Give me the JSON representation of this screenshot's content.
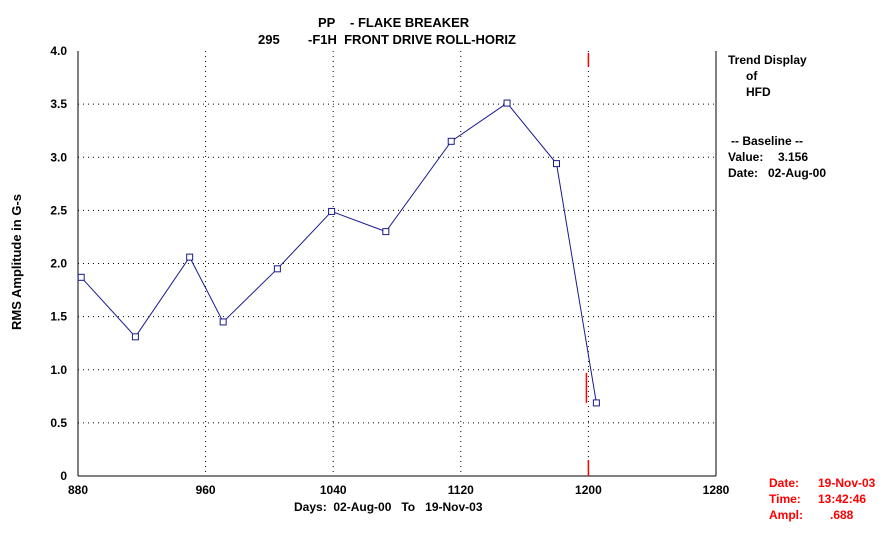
{
  "chart_data": {
    "type": "line",
    "title_lines": [
      {
        "code": "PP",
        "desc": "- FLAKE BREAKER"
      },
      {
        "code": "295",
        "desc": "-F1H  FRONT DRIVE ROLL-HORIZ"
      }
    ],
    "xlabel": "Days:  02-Aug-00   To   19-Nov-03",
    "ylabel": "RMS Amplitude in G-s",
    "xlim": [
      880,
      1280
    ],
    "ylim": [
      0,
      4.0
    ],
    "x_ticks": [
      "880",
      "960",
      "1040",
      "1120",
      "1200",
      "1280"
    ],
    "x_tick_values": [
      880,
      960,
      1040,
      1120,
      1200,
      1280
    ],
    "y_ticks": [
      "0",
      "0.5",
      "1.0",
      "1.5",
      "2.0",
      "2.5",
      "3.0",
      "3.5",
      "4.0"
    ],
    "y_tick_values": [
      0,
      0.5,
      1.0,
      1.5,
      2.0,
      2.5,
      3.0,
      3.5,
      4.0
    ],
    "grid": true,
    "marker_x": 1200,
    "series": [
      {
        "x": [
          882,
          916,
          950,
          971,
          1005,
          1039,
          1073,
          1114,
          1149,
          1180,
          1205
        ],
        "y": [
          1.87,
          1.31,
          2.06,
          1.45,
          1.95,
          2.49,
          2.3,
          3.15,
          3.51,
          2.94,
          0.688
        ]
      }
    ]
  },
  "info": {
    "line1": "Trend Display",
    "line2": "of",
    "line3": "HFD",
    "baseline_header": "-- Baseline --",
    "value_label": "Value:",
    "value": "3.156",
    "date_label": "Date:",
    "date": "02-Aug-00"
  },
  "cursor": {
    "date_label": "Date:",
    "date": "19-Nov-03",
    "time_label": "Time:",
    "time": "13:42:46",
    "ampl_label": "Ampl:",
    "ampl": ".688"
  },
  "colors": {
    "line": "#1a1a8c",
    "marker": "#1a1a8c",
    "cursor": "#ff0000",
    "grid": "#000000"
  }
}
